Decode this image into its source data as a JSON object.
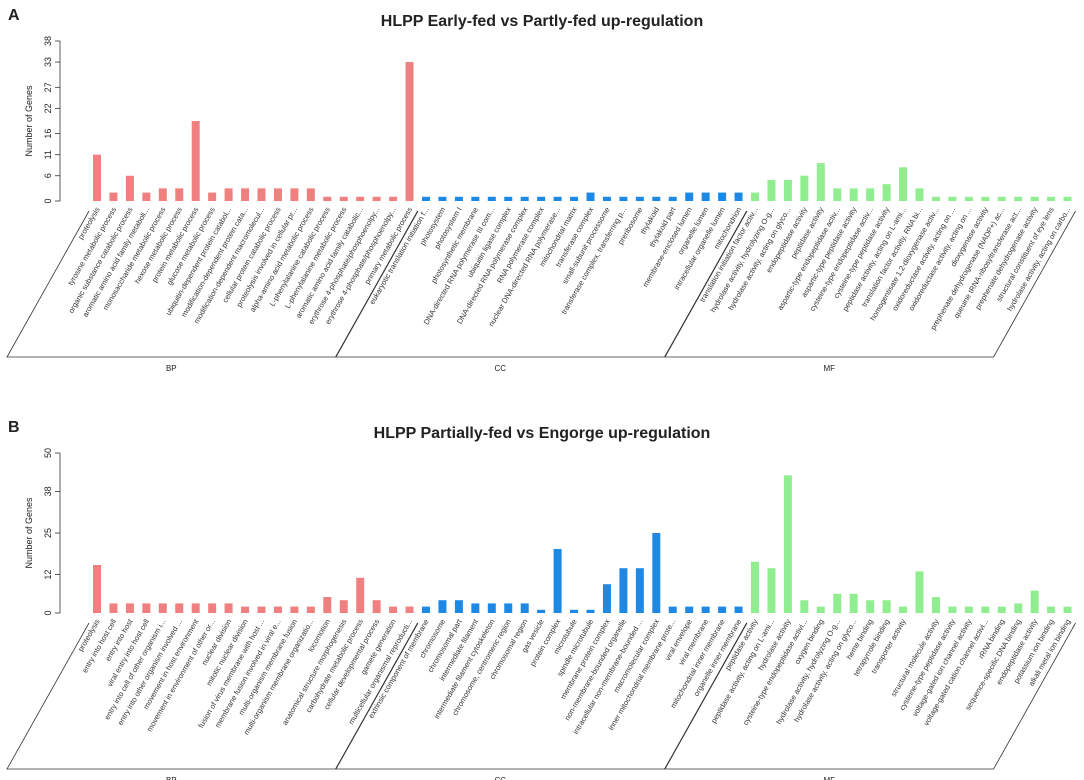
{
  "chart_data": [
    {
      "type": "bar",
      "panel": "A",
      "title": "HLPP Early-fed vs Partly-fed up-regulation",
      "ylabel": "Number of Genes",
      "ylim": [
        0,
        38
      ],
      "yticks": [
        0,
        6,
        11,
        16,
        22,
        27,
        33,
        38
      ],
      "series": [
        {
          "name": "BP",
          "color": "#f08080",
          "categories": [
            "proteolysis",
            "tyrosine metabolic process",
            "organic substance catabolic process",
            "aromatic amino acid family metaboli...",
            "monosaccharide metabolic process",
            "hexose metabolic process",
            "protein metabolic process",
            "glucose metabolic process",
            "ubiquitin-dependent protein catabol...",
            "modification-dependent protein cata...",
            "modification-dependent macromolecul...",
            "cellular protein catabolic process",
            "proteolysis involved in cellular pr...",
            "alpha-amino acid metabolic process",
            "L-phenylalanine catabolic process",
            "L-phenylalanine metabolic process",
            "aromatic amino acid family catabolic...",
            "erythrose 4-phosphate/phosphoenolpy...",
            "erythrose 4-phosphate/phosphoenolpy...",
            "primary metabolic process"
          ],
          "values": [
            11,
            2,
            6,
            2,
            3,
            3,
            19,
            2,
            3,
            3,
            3,
            3,
            3,
            3,
            1,
            1,
            1,
            1,
            1,
            33
          ]
        },
        {
          "name": "CC",
          "color": "#1e88e5",
          "categories": [
            "eukaryotic translation initiation f...",
            "photosystem",
            "photosystem I",
            "photosynthetic membrane",
            "DNA-directed RNA polymerase III com...",
            "ubiquitin ligase complex",
            "DNA-directed RNA polymerase complex",
            "RNA polymerase complex",
            "nuclear DNA-directed RNA polymerase...",
            "mitochondrial matrix",
            "transferase complex",
            "small-subunit processome",
            "transferase complex, transferring p...",
            "preribosome",
            "thylakoid",
            "thylakoid part",
            "membrane-enclosed lumen",
            "organelle lumen",
            "intracellular organelle lumen",
            "mitochondrion"
          ],
          "values": [
            1,
            1,
            1,
            1,
            1,
            1,
            1,
            1,
            1,
            1,
            2,
            1,
            1,
            1,
            1,
            1,
            2,
            2,
            2,
            2
          ]
        },
        {
          "name": "MF",
          "color": "#90ee90",
          "categories": [
            "translation initiation factor activ...",
            "hydrolase activity, hydrolyzing O-g...",
            "hydrolase activity, acting on glyco...",
            "endopeptidase activity",
            "peptidase activity",
            "aspartic-type endopeptidase activ...",
            "aspartic-type peptidase activity",
            "cysteine-type endopeptidase activ...",
            "cysteine-type peptidase activity",
            "peptidase activity, acting on L-ami...",
            "translation factor activity, RNA bi...",
            "homogentisate 1,2-dioxygenase activ...",
            "oxidoreductase activity, acting on ...",
            "oxidoreductase activity, acting on ...",
            "dioxygenase activity",
            "prephenate dehydrogenase (NADP+) ac...",
            "queuine tRNA-ribosyltransferase act...",
            "prephenate dehydrogenase activity",
            "structural constituent of eye lens",
            "hydrolase activity, acting on carbo..."
          ],
          "values": [
            2,
            5,
            5,
            6,
            9,
            3,
            3,
            3,
            4,
            8,
            3,
            1,
            1,
            1,
            1,
            1,
            1,
            1,
            1,
            1
          ]
        }
      ]
    },
    {
      "type": "bar",
      "panel": "B",
      "title": "HLPP Partially-fed vs Engorge up-regulation",
      "ylabel": "Number of Genes",
      "ylim": [
        0,
        50
      ],
      "yticks": [
        0,
        12,
        25,
        38,
        50
      ],
      "series": [
        {
          "name": "BP",
          "color": "#f08080",
          "categories": [
            "proteolysis",
            "entry into host cell",
            "entry into host",
            "viral entry into host cell",
            "entry into cell of other organism i...",
            "entry into other organism involved ...",
            "movement in host environment",
            "movement in environment of other or...",
            "nuclear division",
            "mitotic nuclear division",
            "fusion of virus membrane with host ...",
            "membrane fusion involved in viral e...",
            "multi-organism membrane fusion",
            "multi-organism membrane organizatio...",
            "locomotion",
            "anatomical structure morphogenesis",
            "carbohydrate metabolic process",
            "cellular developmental process",
            "gamete generation",
            "multicellular organismal reproducti..."
          ],
          "values": [
            15,
            3,
            3,
            3,
            3,
            3,
            3,
            3,
            3,
            2,
            2,
            2,
            2,
            2,
            5,
            4,
            11,
            4,
            2,
            2
          ]
        },
        {
          "name": "CC",
          "color": "#1e88e5",
          "categories": [
            "extrinsic component of membrane",
            "chromosome",
            "chromosomal part",
            "intermediate filament",
            "intermediate filament cytoskeleton",
            "chromosome, centromeric region",
            "chromosomal region",
            "gas vesicle",
            "protein complex",
            "microtubule",
            "spindle microtubule",
            "membrane protein complex",
            "non-membrane-bounded organelle",
            "intracellular non-membrane-bounded ...",
            "macromolecular complex",
            "inner mitochondrial membrane prote...",
            "viral envelope",
            "viral membrane",
            "mitochondrial inner membrane",
            "organelle inner membrane"
          ],
          "values": [
            2,
            4,
            4,
            3,
            3,
            3,
            3,
            1,
            20,
            1,
            1,
            9,
            14,
            14,
            25,
            2,
            2,
            2,
            2,
            2
          ]
        },
        {
          "name": "MF",
          "color": "#90ee90",
          "categories": [
            "peptidase activity",
            "peptidase activity, acting on L-ami...",
            "hydrolase activity",
            "cysteine-type endopeptidase activi...",
            "oxygen binding",
            "hydrolase activity, hydrolyzing O-g...",
            "hydrolase activity, acting on glyco...",
            "heme binding",
            "tetrapyrrole binding",
            "transporter activity",
            null,
            "structural molecule activity",
            "cysteine-type peptidase activity",
            "voltage-gated ion channel activity",
            "voltage-gated cation channel activi...",
            "rRNA binding",
            "sequence-specific DNA binding",
            "endopeptidase activity",
            "potassium ion binding",
            "alkali metal ion binding"
          ],
          "values": [
            16,
            14,
            43,
            4,
            2,
            6,
            6,
            4,
            4,
            2,
            13,
            5,
            2,
            2,
            2,
            2,
            3,
            7,
            2,
            2
          ]
        }
      ]
    }
  ]
}
